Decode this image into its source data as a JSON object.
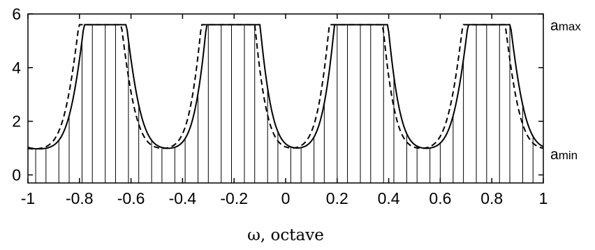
{
  "chart_data": {
    "type": "line",
    "title": "",
    "xlabel": "ω, octave",
    "ylabel": "",
    "xlim": [
      -1,
      1
    ],
    "ylim": [
      -0.3,
      6
    ],
    "x_ticks": [
      -1,
      -0.8,
      -0.6,
      -0.4,
      -0.2,
      0,
      0.2,
      0.4,
      0.6,
      0.8,
      1
    ],
    "x_tick_labels": [
      "-1",
      "-0.8",
      "-0.6",
      "-0.4",
      "-0.2",
      "0",
      "0.2",
      "0.4",
      "0.6",
      "0.8",
      "1"
    ],
    "y_ticks": [
      0,
      2,
      4,
      6
    ],
    "y_tick_labels": [
      "0",
      "2",
      "4",
      "6"
    ],
    "grid": false,
    "amplitude_max": 5.6,
    "amplitude_min": 0.95,
    "period_octave": 0.5,
    "series": [
      {
        "style": "solid",
        "peak_positions": [
          -0.7,
          -0.2,
          0.29,
          0.79
        ]
      },
      {
        "style": "dashed",
        "peak_positions": [
          -0.72,
          -0.22,
          0.27,
          0.77
        ]
      }
    ],
    "stem_positions": [
      -0.97,
      -0.93,
      -0.88,
      -0.84,
      -0.79,
      -0.75,
      -0.7,
      -0.66,
      -0.61,
      -0.57,
      -0.52,
      -0.48,
      -0.43,
      -0.39,
      -0.34,
      -0.3,
      -0.25,
      -0.21,
      -0.16,
      -0.12,
      -0.07,
      -0.03,
      0.02,
      0.06,
      0.11,
      0.15,
      0.2,
      0.24,
      0.29,
      0.33,
      0.38,
      0.42,
      0.47,
      0.51,
      0.56,
      0.6,
      0.65,
      0.69,
      0.74,
      0.78,
      0.83,
      0.87,
      0.92,
      0.96
    ],
    "annotations": [
      {
        "label_main": "a",
        "label_sub": "max",
        "y": 5.6
      },
      {
        "label_main": "a",
        "label_sub": "min",
        "y": 0.95
      }
    ]
  }
}
